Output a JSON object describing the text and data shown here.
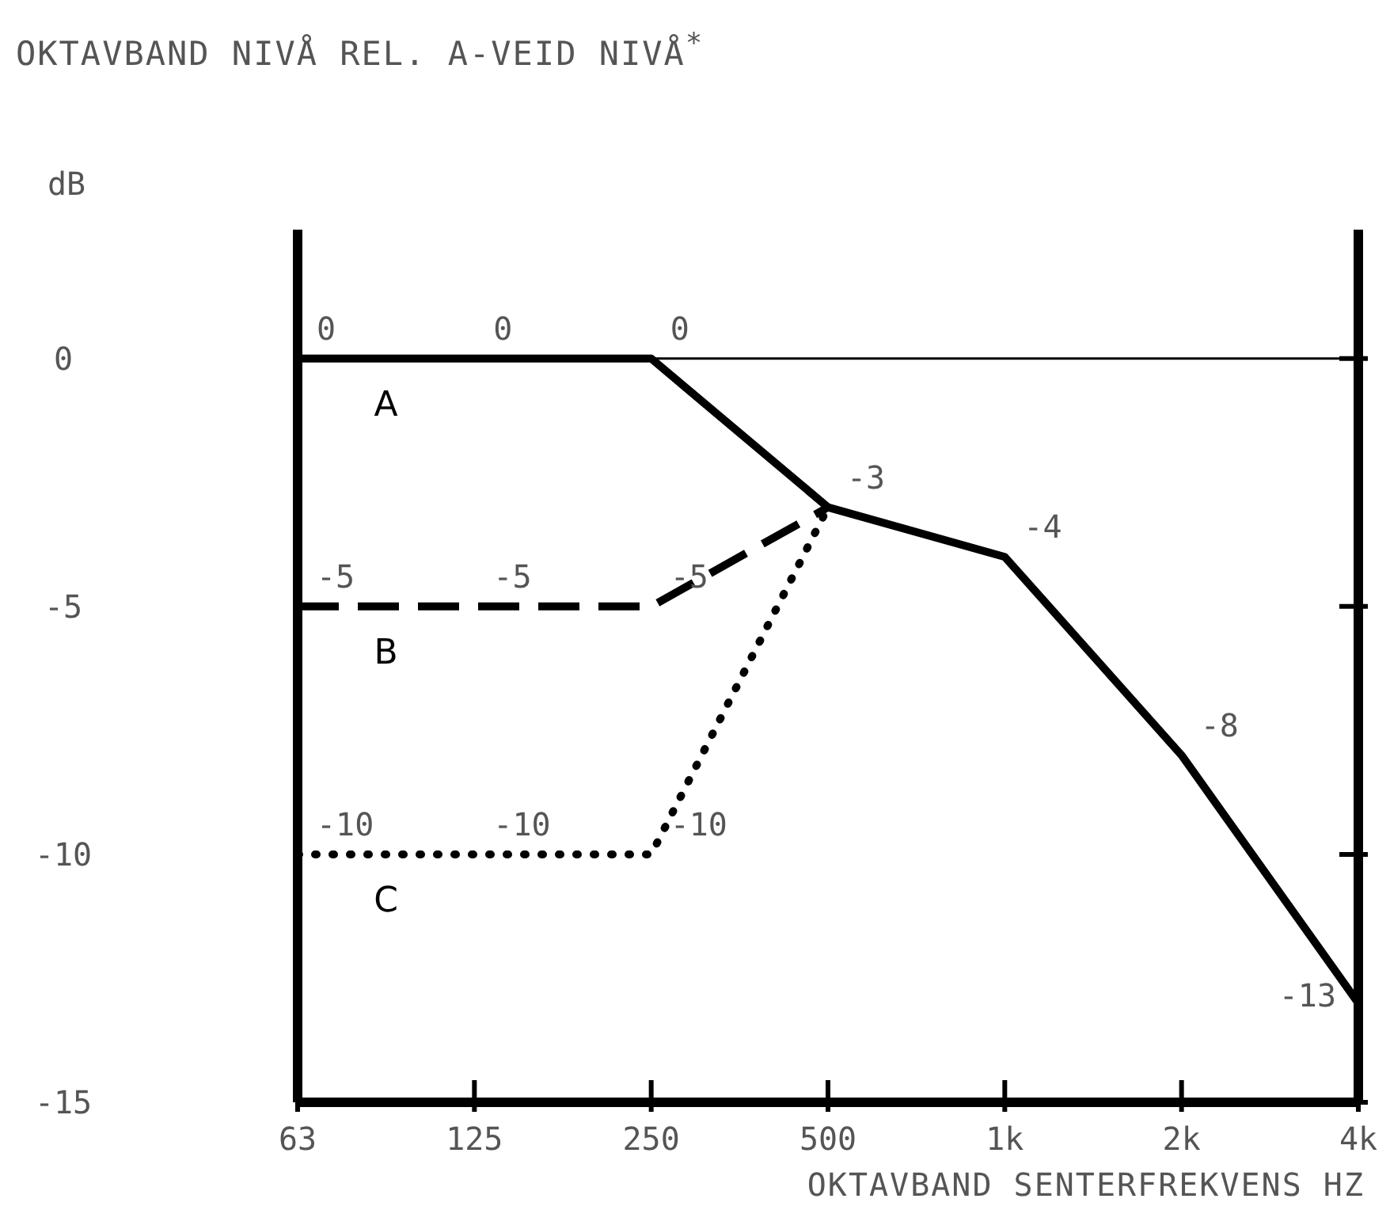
{
  "chart_data": {
    "type": "line",
    "title": "OKTAVBAND NIVÅ REL. A-VEID NIVÅ$^{*}$",
    "xlabel": "OKTAVBAND SENTERFREKVENS HZ",
    "ylabel": "dB",
    "categories": [
      "63",
      "125",
      "250",
      "500",
      "1k",
      "2k",
      "4k"
    ],
    "ylim": [
      -15,
      2.6
    ],
    "yticks": [
      0,
      -5,
      -10,
      -15
    ],
    "ref_lines": [
      {
        "axis": "y",
        "value": 0,
        "color": "#000000"
      }
    ],
    "series": [
      {
        "name": "A",
        "color": "#000000",
        "line_style": "solid",
        "values": [
          0,
          0,
          0,
          -3,
          -4,
          -8,
          -13
        ],
        "value_labels": [
          "0",
          "0",
          "0",
          "-3",
          "-4",
          "-8",
          "-13"
        ]
      },
      {
        "name": "B",
        "color": "#000000",
        "line_style": "dashed",
        "values": [
          -5,
          -5,
          -5,
          -3,
          null,
          null,
          null
        ],
        "value_labels": [
          "-5",
          "-5",
          "-5",
          null,
          null,
          null,
          null
        ]
      },
      {
        "name": "C",
        "color": "#000000",
        "line_style": "dotted",
        "values": [
          -10,
          -10,
          -10,
          -3,
          null,
          null,
          null
        ],
        "value_labels": [
          "-10",
          "-10",
          "-10",
          null,
          null,
          null,
          null
        ]
      }
    ],
    "marker": "none"
  }
}
